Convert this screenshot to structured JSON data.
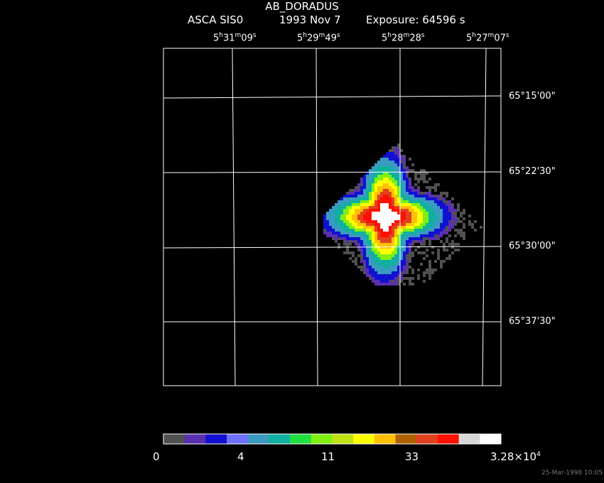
{
  "header": {
    "object": "AB_DORADUS",
    "instrument": "ASCA SIS0",
    "date": "1993 Nov  7",
    "exposure": "Exposure: 64596 s"
  },
  "ra_ticks": [
    {
      "h": "5",
      "m": "31",
      "s": "09"
    },
    {
      "h": "5",
      "m": "29",
      "s": "49"
    },
    {
      "h": "5",
      "m": "28",
      "s": "28"
    },
    {
      "h": "5",
      "m": "27",
      "s": "07"
    }
  ],
  "dec_ticks": [
    "65°15'00\"",
    "65°22'30\"",
    "65°30'00\"",
    "65°37'30\""
  ],
  "colorbar": {
    "colors": [
      "#505050",
      "#5a2fb0",
      "#1010d0",
      "#7070ff",
      "#3a9ac0",
      "#10b0a0",
      "#20e040",
      "#80f010",
      "#c0e010",
      "#ffff00",
      "#ffc000",
      "#b06000",
      "#e04020",
      "#ff1000",
      "#d8d8d8",
      "#ffffff"
    ],
    "tick_labels": [
      "0",
      "4",
      "11",
      "33",
      "3.28×10"
    ],
    "max_exponent": "4"
  },
  "timestamp": "25-Mar-1998 10:05"
}
